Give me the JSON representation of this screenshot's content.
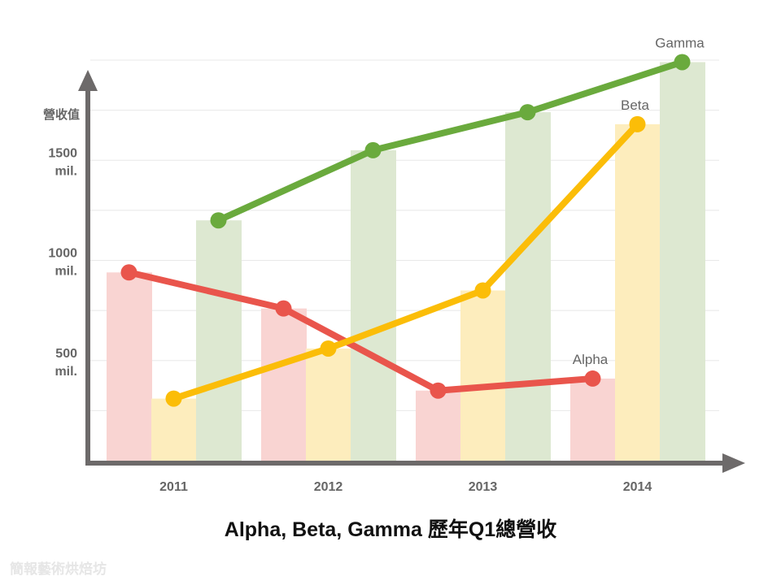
{
  "chart_data": {
    "type": "bar",
    "title": "Alpha, Beta, Gamma 歷年Q1總營收",
    "ylabel": "營收值",
    "xlabel": "",
    "categories": [
      "2011",
      "2012",
      "2013",
      "2014"
    ],
    "ylim": [
      0,
      2000
    ],
    "y_ticks": [
      {
        "value": 500,
        "line1": "500",
        "line2": "mil."
      },
      {
        "value": 1000,
        "line1": "1000",
        "line2": "mil."
      },
      {
        "value": 1500,
        "line1": "1500",
        "line2": "mil."
      }
    ],
    "grid": true,
    "grid_step": 250,
    "overlay": "line",
    "series": [
      {
        "name": "Alpha",
        "values": [
          940,
          760,
          350,
          410
        ],
        "bar_color": "#f9d4d2",
        "line_color": "#e9554c"
      },
      {
        "name": "Beta",
        "values": [
          310,
          560,
          850,
          1680
        ],
        "bar_color": "#fdedbd",
        "line_color": "#fbbd08"
      },
      {
        "name": "Gamma",
        "values": [
          1200,
          1550,
          1740,
          1990
        ],
        "bar_color": "#dde8d1",
        "line_color": "#6aaa3d"
      }
    ]
  },
  "watermark": "簡報藝術烘焙坊"
}
